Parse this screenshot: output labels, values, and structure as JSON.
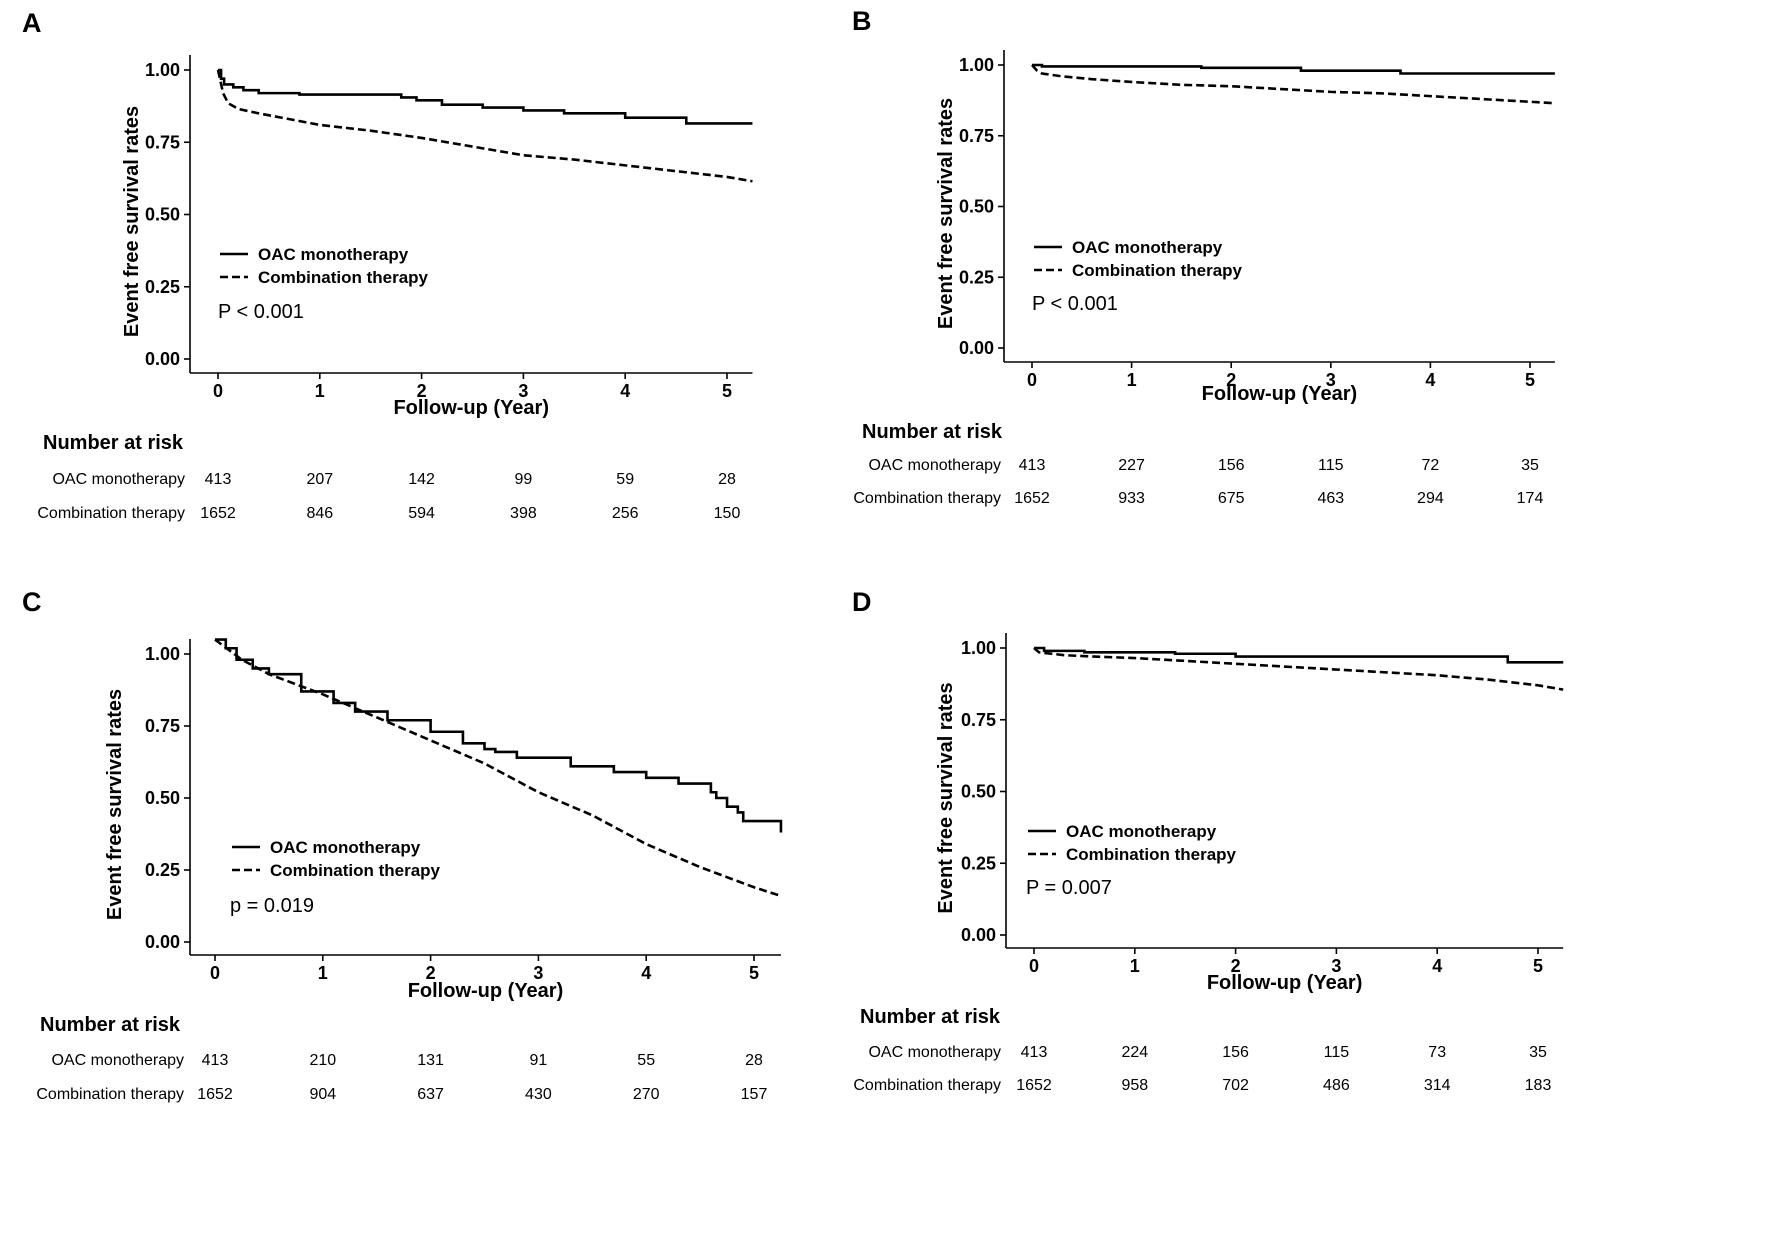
{
  "chart_data": [
    {
      "type": "line",
      "panel": "A",
      "xlabel": "Follow-up (Year)",
      "ylabel": "Event free survival rates",
      "xlim": [
        -0.3,
        5.25
      ],
      "ylim": [
        -0.05,
        1.05
      ],
      "x_ticks": [
        "0",
        "1",
        "2",
        "3",
        "4",
        "5"
      ],
      "y_ticks": [
        "0.00",
        "0.25",
        "0.50",
        "0.75",
        "1.00"
      ],
      "p_value": "P < 0.001",
      "series": [
        {
          "name": "OAC monotherapy",
          "style": "solid",
          "step": true,
          "x": [
            0,
            0.03,
            0.06,
            0.15,
            0.25,
            0.4,
            0.8,
            1.8,
            1.95,
            2.2,
            2.6,
            3.0,
            3.4,
            4.0,
            4.6,
            5.25
          ],
          "y": [
            1.0,
            0.97,
            0.95,
            0.94,
            0.93,
            0.92,
            0.915,
            0.905,
            0.895,
            0.88,
            0.87,
            0.86,
            0.85,
            0.835,
            0.815,
            0.815
          ]
        },
        {
          "name": "Combination therapy",
          "style": "dashed",
          "step": false,
          "x": [
            0,
            0.05,
            0.1,
            0.2,
            0.4,
            0.7,
            1.0,
            1.5,
            2.0,
            2.5,
            3.0,
            3.5,
            4.0,
            4.5,
            5.0,
            5.25
          ],
          "y": [
            1.0,
            0.92,
            0.885,
            0.865,
            0.85,
            0.83,
            0.81,
            0.79,
            0.765,
            0.735,
            0.705,
            0.69,
            0.67,
            0.65,
            0.63,
            0.615
          ]
        }
      ],
      "risk_table": {
        "title": "Number at risk",
        "rows": [
          {
            "name": "OAC monotherapy",
            "values": [
              "413",
              "207",
              "142",
              "99",
              "59",
              "28"
            ]
          },
          {
            "name": "Combination therapy",
            "values": [
              "1652",
              "846",
              "594",
              "398",
              "256",
              "150"
            ]
          }
        ]
      }
    },
    {
      "type": "line",
      "panel": "B",
      "xlabel": "Follow-up (Year)",
      "ylabel": "Event free survival rates",
      "xlim": [
        -0.3,
        5.25
      ],
      "ylim": [
        -0.05,
        1.05
      ],
      "x_ticks": [
        "0",
        "1",
        "2",
        "3",
        "4",
        "5"
      ],
      "y_ticks": [
        "0.00",
        "0.25",
        "0.50",
        "0.75",
        "1.00"
      ],
      "p_value": "P < 0.001",
      "series": [
        {
          "name": "OAC monotherapy",
          "style": "solid",
          "step": true,
          "x": [
            0,
            0.1,
            1.7,
            2.7,
            3.7,
            5.25
          ],
          "y": [
            1.0,
            0.995,
            0.99,
            0.98,
            0.97,
            0.97
          ]
        },
        {
          "name": "Combination therapy",
          "style": "dashed",
          "step": false,
          "x": [
            0,
            0.05,
            0.1,
            0.3,
            0.6,
            1.0,
            1.5,
            2.0,
            2.5,
            3.0,
            3.5,
            4.0,
            4.5,
            5.0,
            5.25
          ],
          "y": [
            1.0,
            0.98,
            0.97,
            0.96,
            0.95,
            0.94,
            0.93,
            0.925,
            0.915,
            0.905,
            0.9,
            0.89,
            0.88,
            0.87,
            0.865
          ]
        }
      ],
      "risk_table": {
        "title": "Number at risk",
        "rows": [
          {
            "name": "OAC monotherapy",
            "values": [
              "413",
              "227",
              "156",
              "115",
              "72",
              "35"
            ]
          },
          {
            "name": "Combination therapy",
            "values": [
              "1652",
              "933",
              "675",
              "463",
              "294",
              "174"
            ]
          }
        ]
      }
    },
    {
      "type": "line",
      "panel": "C",
      "xlabel": "Follow-up (Year)",
      "ylabel": "Event free survival rates",
      "xlim": [
        -0.3,
        5.25
      ],
      "ylim": [
        -0.05,
        1.05
      ],
      "x_ticks": [
        "0",
        "1",
        "2",
        "3",
        "4",
        "5"
      ],
      "y_ticks": [
        "0.00",
        "0.25",
        "0.50",
        "0.75",
        "1.00"
      ],
      "p_value": "p = 0.019",
      "series": [
        {
          "name": "OAC monotherapy",
          "style": "solid",
          "step": true,
          "x": [
            0,
            0.1,
            0.2,
            0.35,
            0.5,
            0.8,
            1.1,
            1.3,
            1.6,
            2.0,
            2.3,
            2.5,
            2.6,
            2.8,
            3.3,
            3.7,
            4.0,
            4.3,
            4.6,
            4.65,
            4.75,
            4.85,
            4.9,
            5.25
          ],
          "y": [
            1.05,
            1.02,
            0.98,
            0.95,
            0.93,
            0.87,
            0.83,
            0.8,
            0.77,
            0.73,
            0.69,
            0.67,
            0.66,
            0.64,
            0.61,
            0.59,
            0.57,
            0.55,
            0.52,
            0.5,
            0.47,
            0.45,
            0.42,
            0.38
          ]
        },
        {
          "name": "Combination therapy",
          "style": "dashed",
          "step": false,
          "x": [
            0,
            0.25,
            0.5,
            1.0,
            1.5,
            2.0,
            2.5,
            3.0,
            3.5,
            4.0,
            4.5,
            5.0,
            5.25
          ],
          "y": [
            1.05,
            0.98,
            0.93,
            0.86,
            0.78,
            0.7,
            0.62,
            0.52,
            0.44,
            0.34,
            0.26,
            0.19,
            0.16
          ]
        }
      ],
      "risk_table": {
        "title": "Number at risk",
        "rows": [
          {
            "name": "OAC monotherapy",
            "values": [
              "413",
              "210",
              "131",
              "91",
              "55",
              "28"
            ]
          },
          {
            "name": "Combination therapy",
            "values": [
              "1652",
              "904",
              "637",
              "430",
              "270",
              "157"
            ]
          }
        ]
      }
    },
    {
      "type": "line",
      "panel": "D",
      "xlabel": "Follow-up (Year)",
      "ylabel": "Event free survival rates",
      "xlim": [
        -0.3,
        5.25
      ],
      "ylim": [
        -0.05,
        1.05
      ],
      "x_ticks": [
        "0",
        "1",
        "2",
        "3",
        "4",
        "5"
      ],
      "y_ticks": [
        "0.00",
        "0.25",
        "0.50",
        "0.75",
        "1.00"
      ],
      "p_value": "P = 0.007",
      "series": [
        {
          "name": "OAC monotherapy",
          "style": "solid",
          "step": true,
          "x": [
            0,
            0.1,
            0.5,
            1.4,
            2.0,
            4.7,
            5.25
          ],
          "y": [
            1.0,
            0.99,
            0.985,
            0.98,
            0.97,
            0.95,
            0.95
          ]
        },
        {
          "name": "Combination therapy",
          "style": "dashed",
          "step": false,
          "x": [
            0,
            0.05,
            0.3,
            0.6,
            1.0,
            1.5,
            2.0,
            2.5,
            3.0,
            3.5,
            4.0,
            4.5,
            5.0,
            5.25
          ],
          "y": [
            1.0,
            0.985,
            0.975,
            0.97,
            0.965,
            0.955,
            0.945,
            0.935,
            0.925,
            0.915,
            0.905,
            0.89,
            0.87,
            0.855
          ]
        }
      ],
      "risk_table": {
        "title": "Number at risk",
        "rows": [
          {
            "name": "OAC monotherapy",
            "values": [
              "413",
              "224",
              "156",
              "115",
              "73",
              "35"
            ]
          },
          {
            "name": "Combination therapy",
            "values": [
              "1652",
              "958",
              "702",
              "486",
              "314",
              "183"
            ]
          }
        ]
      }
    }
  ]
}
